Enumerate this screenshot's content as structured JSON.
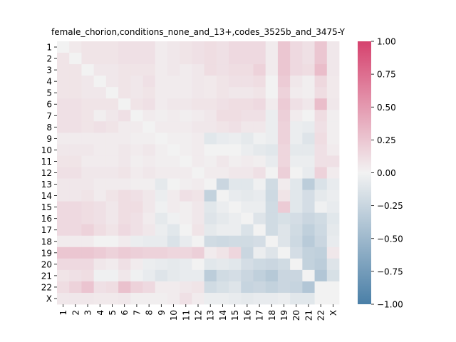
{
  "chart_data": {
    "type": "heatmap",
    "title": "female_chorion,conditions_none_and_13+,codes_3525b_and_3475-Y",
    "xlabel": "",
    "ylabel": "",
    "x_categories": [
      "1",
      "2",
      "3",
      "4",
      "5",
      "6",
      "7",
      "8",
      "9",
      "10",
      "11",
      "12",
      "13",
      "14",
      "15",
      "16",
      "17",
      "18",
      "19",
      "20",
      "21",
      "22",
      "X"
    ],
    "y_categories": [
      "1",
      "2",
      "3",
      "4",
      "5",
      "6",
      "7",
      "8",
      "9",
      "10",
      "11",
      "12",
      "13",
      "14",
      "15",
      "16",
      "17",
      "18",
      "19",
      "20",
      "21",
      "22",
      "X"
    ],
    "colorbar": {
      "vmin": -1.0,
      "vmax": 1.0,
      "ticks": [
        1.0,
        0.75,
        0.5,
        0.25,
        0.0,
        -0.25,
        -0.5,
        -0.75,
        -1.0
      ],
      "tick_labels": [
        "1.00",
        "0.75",
        "0.50",
        "0.25",
        "0.00",
        "−0.25",
        "−0.50",
        "−0.75",
        "−1.00"
      ],
      "colors": {
        "low": "#4a7fa7",
        "mid": "#f2f2f2",
        "high": "#d6426e"
      }
    },
    "values": [
      [
        0.0,
        0.05,
        0.08,
        0.08,
        0.08,
        0.1,
        0.1,
        0.1,
        0.04,
        0.06,
        0.08,
        0.1,
        0.12,
        0.1,
        0.14,
        0.14,
        0.14,
        0.04,
        0.25,
        0.14,
        0.1,
        0.25,
        0.06
      ],
      [
        0.08,
        0.0,
        0.08,
        0.08,
        0.08,
        0.1,
        0.1,
        0.1,
        0.04,
        0.06,
        0.08,
        0.1,
        0.12,
        0.1,
        0.14,
        0.14,
        0.14,
        0.04,
        0.25,
        0.14,
        0.1,
        0.25,
        0.06
      ],
      [
        0.08,
        0.08,
        0.0,
        0.06,
        0.06,
        0.08,
        0.08,
        0.08,
        0.04,
        0.06,
        0.04,
        0.06,
        0.12,
        0.1,
        0.12,
        0.12,
        0.18,
        0.04,
        0.25,
        0.14,
        0.12,
        0.3,
        0.06
      ],
      [
        0.08,
        0.08,
        0.06,
        0.0,
        0.06,
        0.08,
        0.06,
        0.1,
        0.04,
        0.04,
        0.04,
        0.06,
        0.05,
        0.08,
        0.1,
        0.1,
        0.12,
        0.0,
        0.22,
        0.06,
        0.02,
        0.15,
        0.05
      ],
      [
        0.08,
        0.08,
        0.06,
        0.06,
        0.0,
        0.08,
        0.06,
        0.08,
        0.04,
        0.04,
        0.04,
        0.06,
        0.05,
        0.08,
        0.06,
        0.06,
        0.08,
        0.0,
        0.18,
        0.04,
        0.02,
        0.12,
        0.05
      ],
      [
        0.1,
        0.1,
        0.08,
        0.08,
        0.08,
        0.0,
        0.08,
        0.1,
        0.04,
        0.06,
        0.06,
        0.08,
        0.08,
        0.1,
        0.12,
        0.12,
        0.14,
        0.04,
        0.22,
        0.1,
        0.06,
        0.3,
        0.06
      ],
      [
        0.1,
        0.1,
        0.08,
        0.02,
        0.06,
        0.1,
        0.0,
        0.04,
        0.02,
        0.04,
        0.02,
        0.04,
        0.06,
        0.12,
        0.12,
        0.1,
        0.1,
        -0.04,
        0.2,
        0.04,
        0.0,
        0.12,
        0.02
      ],
      [
        0.1,
        0.1,
        0.08,
        0.1,
        0.08,
        0.04,
        0.04,
        0.0,
        0.04,
        0.04,
        0.04,
        0.06,
        0.06,
        0.08,
        0.1,
        0.06,
        0.06,
        -0.04,
        0.18,
        -0.04,
        -0.06,
        0.1,
        0.02
      ],
      [
        0.04,
        0.04,
        0.04,
        0.04,
        0.04,
        0.04,
        0.02,
        0.02,
        0.0,
        0.02,
        0.02,
        0.04,
        -0.1,
        -0.06,
        -0.04,
        -0.08,
        -0.02,
        -0.04,
        0.18,
        -0.04,
        -0.12,
        0.12,
        0.02
      ],
      [
        0.06,
        0.06,
        0.06,
        0.04,
        0.04,
        0.06,
        0.04,
        0.06,
        0.02,
        0.0,
        0.02,
        0.04,
        0.0,
        0.0,
        0.0,
        -0.04,
        -0.08,
        -0.1,
        0.16,
        -0.08,
        -0.08,
        0.1,
        0.04
      ],
      [
        0.08,
        0.08,
        0.04,
        0.04,
        0.04,
        0.06,
        0.02,
        0.04,
        0.02,
        0.02,
        0.0,
        0.04,
        0.02,
        0.06,
        0.02,
        0.04,
        0.02,
        -0.06,
        0.16,
        -0.04,
        -0.04,
        0.1,
        0.1
      ],
      [
        0.1,
        0.1,
        0.06,
        0.06,
        0.06,
        0.08,
        0.04,
        0.06,
        0.04,
        0.04,
        0.04,
        0.0,
        0.04,
        0.04,
        0.06,
        0.06,
        0.1,
        0.0,
        0.2,
        0.0,
        -0.06,
        0.18,
        0.04
      ],
      [
        0.06,
        0.06,
        0.06,
        0.04,
        0.04,
        0.04,
        0.02,
        0.02,
        -0.08,
        0.0,
        0.02,
        0.04,
        0.0,
        -0.24,
        -0.1,
        -0.1,
        -0.02,
        -0.2,
        0.04,
        -0.1,
        -0.32,
        -0.14,
        -0.06
      ],
      [
        0.06,
        0.06,
        0.08,
        0.04,
        0.08,
        0.12,
        0.1,
        0.06,
        -0.04,
        0.04,
        0.1,
        0.08,
        -0.28,
        0.0,
        -0.06,
        -0.08,
        -0.06,
        -0.22,
        0.08,
        -0.1,
        -0.18,
        -0.08,
        -0.04
      ],
      [
        0.14,
        0.14,
        0.12,
        0.1,
        0.06,
        0.12,
        0.12,
        0.06,
        -0.02,
        0.04,
        0.02,
        0.06,
        -0.1,
        -0.04,
        0.0,
        -0.04,
        -0.04,
        -0.2,
        0.22,
        -0.1,
        -0.18,
        -0.02,
        -0.06
      ],
      [
        0.14,
        0.14,
        0.12,
        0.1,
        0.06,
        0.12,
        0.1,
        0.04,
        -0.08,
        -0.02,
        0.02,
        0.06,
        -0.12,
        -0.08,
        -0.04,
        0.0,
        -0.12,
        -0.2,
        -0.16,
        -0.18,
        -0.24,
        -0.2,
        -0.1
      ],
      [
        0.14,
        0.14,
        0.18,
        0.12,
        0.08,
        0.14,
        0.1,
        0.06,
        -0.04,
        -0.1,
        0.0,
        0.08,
        -0.08,
        -0.04,
        -0.04,
        -0.14,
        0.0,
        -0.2,
        -0.12,
        -0.2,
        -0.3,
        -0.22,
        -0.08
      ],
      [
        0.04,
        0.04,
        0.04,
        0.0,
        0.0,
        0.04,
        -0.04,
        -0.06,
        -0.06,
        -0.14,
        -0.06,
        0.0,
        -0.2,
        -0.22,
        -0.2,
        -0.2,
        -0.18,
        0.0,
        -0.12,
        -0.22,
        -0.34,
        -0.24,
        -0.06
      ],
      [
        0.25,
        0.25,
        0.25,
        0.22,
        0.18,
        0.22,
        0.2,
        0.18,
        0.18,
        0.16,
        0.16,
        0.2,
        0.04,
        0.08,
        0.16,
        -0.24,
        -0.04,
        -0.12,
        0.0,
        -0.18,
        -0.28,
        -0.3,
        0.06
      ],
      [
        0.14,
        0.14,
        0.14,
        0.06,
        0.04,
        0.1,
        0.04,
        -0.04,
        -0.06,
        -0.08,
        -0.06,
        0.0,
        -0.1,
        -0.08,
        -0.1,
        -0.18,
        -0.22,
        -0.24,
        -0.2,
        0.0,
        -0.28,
        -0.32,
        -0.12
      ],
      [
        0.08,
        0.1,
        0.12,
        -0.02,
        -0.02,
        0.06,
        -0.02,
        -0.06,
        -0.12,
        -0.08,
        -0.06,
        -0.06,
        -0.32,
        -0.2,
        -0.18,
        -0.24,
        -0.3,
        -0.36,
        -0.24,
        -0.24,
        0.0,
        -0.38,
        -0.16
      ],
      [
        0.12,
        0.18,
        0.26,
        0.1,
        0.12,
        0.28,
        0.18,
        0.14,
        0.04,
        0.04,
        0.06,
        0.08,
        -0.2,
        -0.16,
        -0.12,
        -0.26,
        -0.24,
        -0.28,
        -0.24,
        -0.26,
        -0.38,
        0.0,
        0.0
      ],
      [
        0.06,
        0.06,
        0.06,
        0.05,
        0.05,
        0.06,
        0.02,
        0.02,
        0.02,
        0.04,
        0.1,
        0.04,
        -0.04,
        -0.04,
        -0.06,
        -0.08,
        -0.06,
        -0.06,
        -0.04,
        -0.1,
        -0.1,
        0.0,
        0.0
      ]
    ]
  }
}
